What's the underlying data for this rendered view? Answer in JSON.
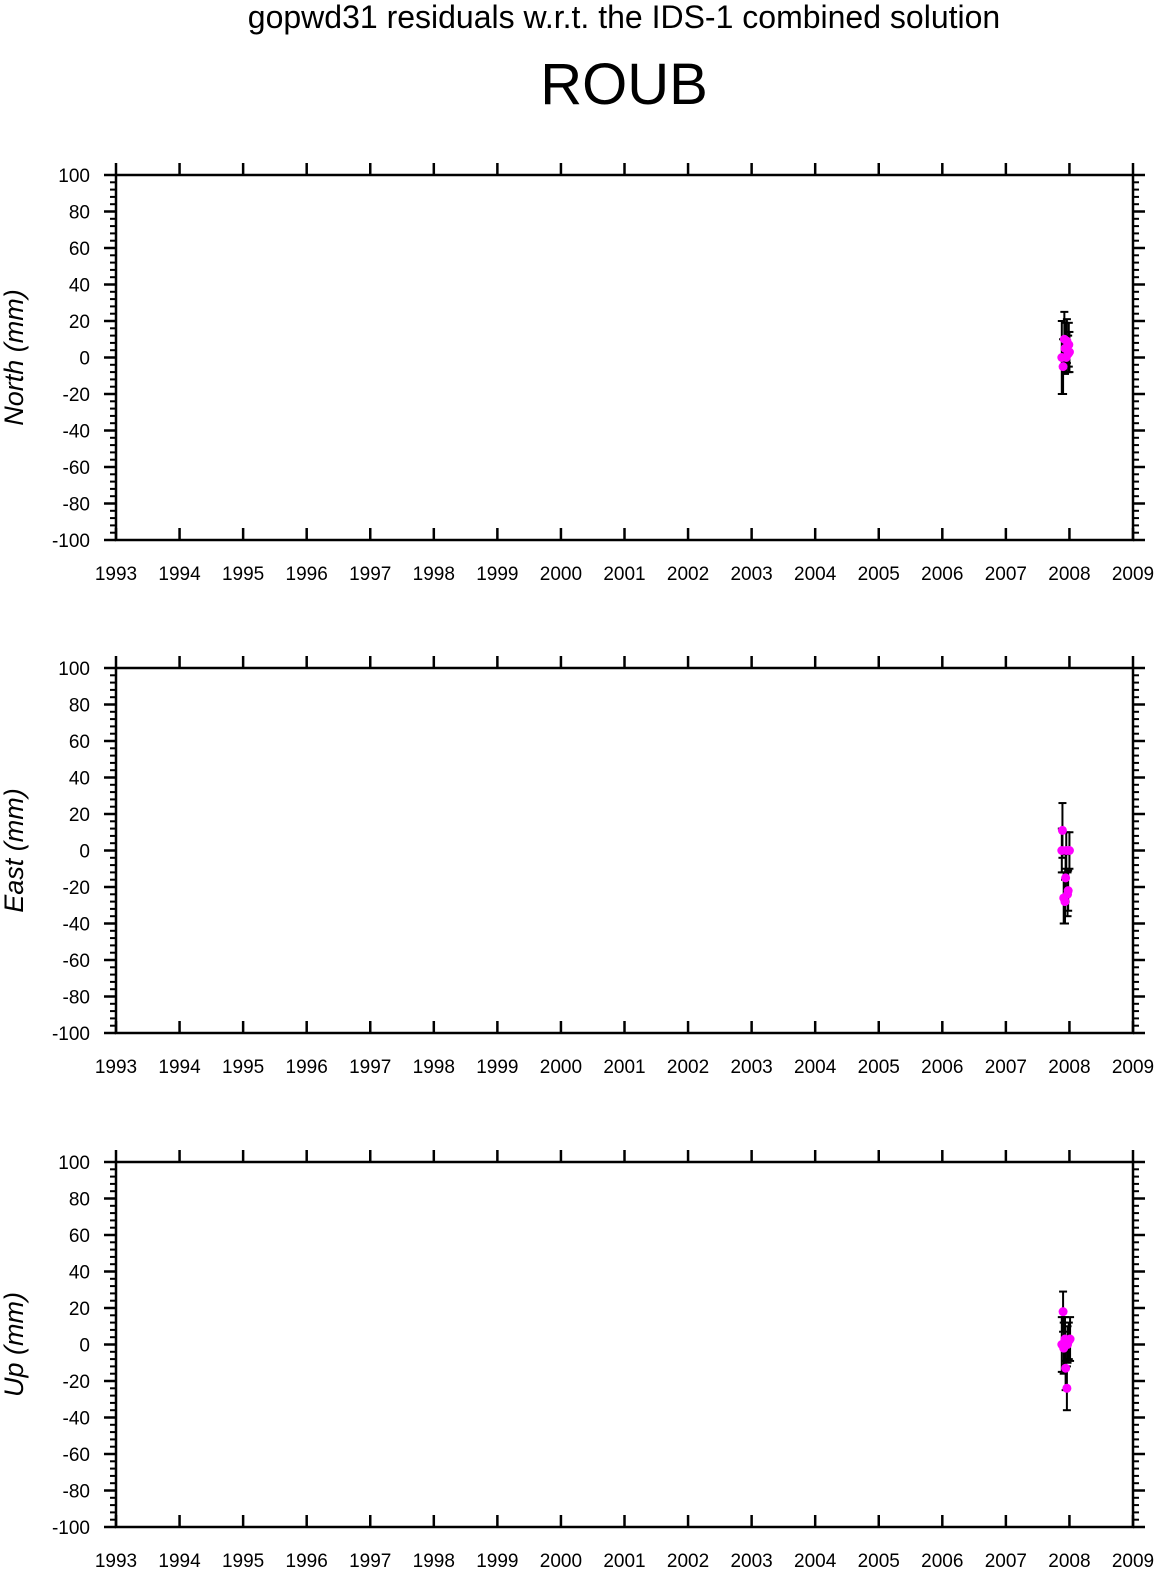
{
  "title": "gopwd31 residuals w.r.t. the IDS-1 combined solution",
  "station": "ROUB",
  "colors": {
    "point": "#ff00ff",
    "errorbar": "#000000",
    "axis": "#000000"
  },
  "chart_data": [
    {
      "type": "scatter",
      "ylabel": "North (mm)",
      "xlim": [
        1993,
        2009
      ],
      "ylim": [
        -100,
        100
      ],
      "x_ticks": [
        1993,
        1994,
        1995,
        1996,
        1997,
        1998,
        1999,
        2000,
        2001,
        2002,
        2003,
        2004,
        2005,
        2006,
        2007,
        2008,
        2009
      ],
      "y_ticks": [
        100,
        80,
        60,
        40,
        20,
        0,
        -20,
        -40,
        -60,
        -80,
        -100
      ],
      "grid": false,
      "points": [
        {
          "x": 2007.88,
          "y": 0,
          "err": 20
        },
        {
          "x": 2007.9,
          "y": -5,
          "err": 15
        },
        {
          "x": 2007.92,
          "y": 10,
          "err": 15
        },
        {
          "x": 2007.93,
          "y": 5,
          "err": 14
        },
        {
          "x": 2007.95,
          "y": 0,
          "err": 8
        },
        {
          "x": 2007.96,
          "y": 9,
          "err": 12
        },
        {
          "x": 2007.98,
          "y": 2,
          "err": 10
        },
        {
          "x": 2007.99,
          "y": 7,
          "err": 12
        },
        {
          "x": 2008.0,
          "y": 3,
          "err": 11
        }
      ]
    },
    {
      "type": "scatter",
      "ylabel": "East (mm)",
      "xlim": [
        1993,
        2009
      ],
      "ylim": [
        -100,
        100
      ],
      "x_ticks": [
        1993,
        1994,
        1995,
        1996,
        1997,
        1998,
        1999,
        2000,
        2001,
        2002,
        2003,
        2004,
        2005,
        2006,
        2007,
        2008,
        2009
      ],
      "y_ticks": [
        100,
        80,
        60,
        40,
        20,
        0,
        -20,
        -40,
        -60,
        -80,
        -100
      ],
      "grid": false,
      "points": [
        {
          "x": 2007.88,
          "y": 0,
          "err": 12
        },
        {
          "x": 2007.89,
          "y": 11,
          "err": 15
        },
        {
          "x": 2007.91,
          "y": -26,
          "err": 14
        },
        {
          "x": 2007.93,
          "y": -28,
          "err": 12
        },
        {
          "x": 2007.94,
          "y": -15,
          "err": 13
        },
        {
          "x": 2007.95,
          "y": 0,
          "err": 10
        },
        {
          "x": 2007.97,
          "y": -24,
          "err": 12
        },
        {
          "x": 2007.98,
          "y": -22,
          "err": 11
        },
        {
          "x": 2008.0,
          "y": 0,
          "err": 10
        }
      ]
    },
    {
      "type": "scatter",
      "ylabel": "Up (mm)",
      "xlim": [
        1993,
        2009
      ],
      "ylim": [
        -100,
        100
      ],
      "x_ticks": [
        1993,
        1994,
        1995,
        1996,
        1997,
        1998,
        1999,
        2000,
        2001,
        2002,
        2003,
        2004,
        2005,
        2006,
        2007,
        2008,
        2009
      ],
      "y_ticks": [
        100,
        80,
        60,
        40,
        20,
        0,
        -20,
        -40,
        -60,
        -80,
        -100
      ],
      "grid": false,
      "points": [
        {
          "x": 2007.88,
          "y": 0,
          "err": 15
        },
        {
          "x": 2007.9,
          "y": 18,
          "err": 11
        },
        {
          "x": 2007.91,
          "y": -2,
          "err": 14
        },
        {
          "x": 2007.93,
          "y": 3,
          "err": 12
        },
        {
          "x": 2007.94,
          "y": -13,
          "err": 12
        },
        {
          "x": 2007.96,
          "y": -24,
          "err": 12
        },
        {
          "x": 2007.97,
          "y": 0,
          "err": 10
        },
        {
          "x": 2007.99,
          "y": 2,
          "err": 10
        },
        {
          "x": 2008.01,
          "y": 3,
          "err": 12
        }
      ]
    }
  ]
}
